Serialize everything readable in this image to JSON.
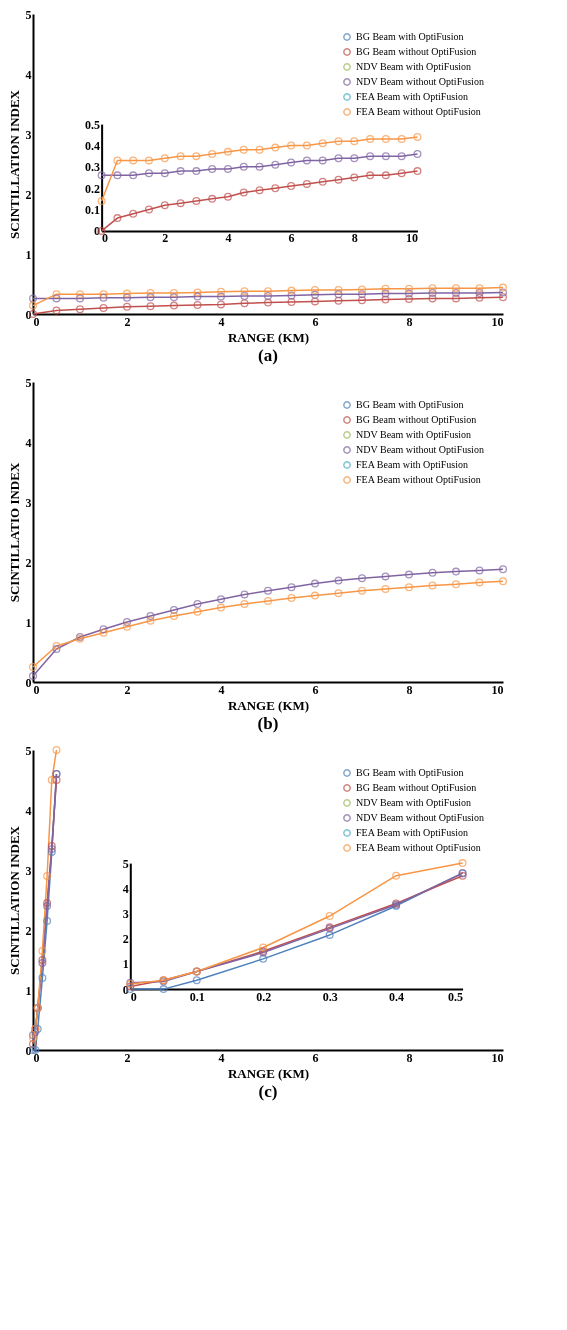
{
  "chart_data": [
    {
      "type": "line",
      "title": "(a)",
      "xlabel": "RANGE (KM)",
      "ylabel": "SCINTILLATION INDEX",
      "x": [
        0,
        0.5,
        1,
        1.5,
        2,
        2.5,
        3,
        3.5,
        4,
        4.5,
        5,
        5.5,
        6,
        6.5,
        7,
        7.5,
        8,
        8.5,
        9,
        9.5,
        10
      ],
      "xlim": [
        0,
        10
      ],
      "xticks": [
        0,
        2,
        4,
        6,
        8,
        10
      ],
      "ylim": [
        0,
        5
      ],
      "yticks": [
        0,
        1,
        2,
        3,
        4,
        5
      ],
      "legend": "top right",
      "marker": "circle",
      "series": [
        {
          "name": "BG Beam with OptiFusion",
          "color": "#4f81bd",
          "values": [
            null,
            null,
            null,
            null,
            null,
            null,
            null,
            null,
            null,
            null,
            null,
            null,
            null,
            null,
            null,
            null,
            null,
            null,
            null,
            null,
            null
          ]
        },
        {
          "name": "BG Beam without OptiFusion",
          "color": "#c0504d",
          "values": [
            0,
            0.06,
            0.08,
            0.1,
            0.12,
            0.13,
            0.14,
            0.15,
            0.16,
            0.18,
            0.19,
            0.2,
            0.21,
            0.22,
            0.23,
            0.24,
            0.25,
            0.26,
            0.26,
            0.27,
            0.28
          ]
        },
        {
          "name": "NDV Beam with OptiFusion",
          "color": "#9bbb59",
          "values": [
            null,
            null,
            null,
            null,
            null,
            null,
            null,
            null,
            null,
            null,
            null,
            null,
            null,
            null,
            null,
            null,
            null,
            null,
            null,
            null,
            null
          ]
        },
        {
          "name": "NDV Beam without OptiFusion",
          "color": "#8064a2",
          "values": [
            0.26,
            0.26,
            0.26,
            0.27,
            0.27,
            0.28,
            0.28,
            0.29,
            0.29,
            0.3,
            0.3,
            0.31,
            0.32,
            0.33,
            0.33,
            0.34,
            0.34,
            0.35,
            0.35,
            0.35,
            0.36
          ]
        },
        {
          "name": "FEA Beam with OptiFusion",
          "color": "#4bacc6",
          "values": [
            null,
            null,
            null,
            null,
            null,
            null,
            null,
            null,
            null,
            null,
            null,
            null,
            null,
            null,
            null,
            null,
            null,
            null,
            null,
            null,
            null
          ]
        },
        {
          "name": "FEA Beam without OptiFusion",
          "color": "#f79646",
          "values": [
            0.14,
            0.33,
            0.33,
            0.33,
            0.34,
            0.35,
            0.35,
            0.36,
            0.37,
            0.38,
            0.38,
            0.39,
            0.4,
            0.4,
            0.41,
            0.42,
            0.42,
            0.43,
            0.43,
            0.43,
            0.44
          ]
        }
      ]
    },
    {
      "type": "line",
      "x": [
        0,
        0.5,
        1,
        1.5,
        2,
        2.5,
        3,
        3.5,
        4,
        4.5,
        5,
        5.5,
        6,
        6.5,
        7,
        7.5,
        8,
        8.5,
        9,
        9.5,
        10
      ],
      "xlim": [
        0,
        10
      ],
      "xticks": [
        0,
        2,
        4,
        6,
        8,
        10
      ],
      "ylim": [
        0,
        0.5
      ],
      "yticks": [
        0,
        0.1,
        0.2,
        0.3,
        0.4,
        0.5
      ],
      "marker": "circle",
      "series": [
        {
          "color": "#c0504d",
          "values": [
            0,
            0.06,
            0.08,
            0.1,
            0.12,
            0.13,
            0.14,
            0.15,
            0.16,
            0.18,
            0.19,
            0.2,
            0.21,
            0.22,
            0.23,
            0.24,
            0.25,
            0.26,
            0.26,
            0.27,
            0.28
          ]
        },
        {
          "color": "#8064a2",
          "values": [
            0.26,
            0.26,
            0.26,
            0.27,
            0.27,
            0.28,
            0.28,
            0.29,
            0.29,
            0.3,
            0.3,
            0.31,
            0.32,
            0.33,
            0.33,
            0.34,
            0.34,
            0.35,
            0.35,
            0.35,
            0.36
          ]
        },
        {
          "color": "#f79646",
          "values": [
            0.14,
            0.33,
            0.33,
            0.33,
            0.34,
            0.35,
            0.35,
            0.36,
            0.37,
            0.38,
            0.38,
            0.39,
            0.4,
            0.4,
            0.41,
            0.42,
            0.42,
            0.43,
            0.43,
            0.43,
            0.44
          ]
        }
      ]
    },
    {
      "type": "line",
      "title": "(b)",
      "xlabel": "RANGE (KM)",
      "ylabel": "SCINTILLATIO INDEX",
      "x": [
        0,
        0.5,
        1,
        1.5,
        2,
        2.5,
        3,
        3.5,
        4,
        4.5,
        5,
        5.5,
        6,
        6.5,
        7,
        7.5,
        8,
        8.5,
        9,
        9.5,
        10
      ],
      "xlim": [
        0,
        10
      ],
      "xticks": [
        0,
        2,
        4,
        6,
        8,
        10
      ],
      "ylim": [
        0,
        5
      ],
      "yticks": [
        0,
        1,
        2,
        3,
        4,
        5
      ],
      "legend": "top right",
      "marker": "circle",
      "series": [
        {
          "name": "BG Beam with OptiFusion",
          "color": "#4f81bd",
          "values": [
            null,
            null,
            null,
            null,
            null,
            null,
            null,
            null,
            null,
            null,
            null,
            null,
            null,
            null,
            null,
            null,
            null,
            null,
            null,
            null,
            null
          ]
        },
        {
          "name": "BG Beam without OptiFusion",
          "color": "#c0504d",
          "values": [
            null,
            null,
            null,
            null,
            null,
            null,
            null,
            null,
            null,
            null,
            null,
            null,
            null,
            null,
            null,
            null,
            null,
            null,
            null,
            null,
            null
          ]
        },
        {
          "name": "NDV Beam with OptiFusion",
          "color": "#9bbb59",
          "values": [
            null,
            null,
            null,
            null,
            null,
            null,
            null,
            null,
            null,
            null,
            null,
            null,
            null,
            null,
            null,
            null,
            null,
            null,
            null,
            null,
            null
          ]
        },
        {
          "name": "NDV Beam without OptiFusion",
          "color": "#8064a2",
          "values": [
            0.1,
            0.55,
            0.75,
            0.88,
            1.0,
            1.1,
            1.2,
            1.3,
            1.38,
            1.46,
            1.52,
            1.58,
            1.64,
            1.69,
            1.73,
            1.76,
            1.79,
            1.82,
            1.84,
            1.86,
            1.88
          ]
        },
        {
          "name": "FEA Beam with OptiFusion",
          "color": "#4bacc6",
          "values": [
            null,
            null,
            null,
            null,
            null,
            null,
            null,
            null,
            null,
            null,
            null,
            null,
            null,
            null,
            null,
            null,
            null,
            null,
            null,
            null,
            null
          ]
        },
        {
          "name": "FEA Beam without OptiFusion",
          "color": "#f79646",
          "values": [
            0.25,
            0.6,
            0.72,
            0.82,
            0.92,
            1.02,
            1.1,
            1.17,
            1.24,
            1.3,
            1.35,
            1.4,
            1.44,
            1.48,
            1.52,
            1.55,
            1.58,
            1.61,
            1.63,
            1.66,
            1.68
          ]
        }
      ]
    },
    {
      "type": "line",
      "title": "(c)",
      "xlabel": "RANGE (KM)",
      "ylabel": "SCINTILLATION INDEX",
      "x": [
        0,
        0.05,
        0.1,
        0.2,
        0.3,
        0.4,
        0.5
      ],
      "xlim": [
        0,
        10
      ],
      "xticks": [
        0,
        2,
        4,
        6,
        8,
        10
      ],
      "ylim": [
        0,
        5
      ],
      "yticks": [
        0,
        1,
        2,
        3,
        4,
        5
      ],
      "legend": "top right",
      "marker": "circle",
      "series": [
        {
          "name": "BG Beam with OptiFusion",
          "color": "#4f81bd",
          "values": [
            0,
            0,
            0.35,
            1.2,
            2.15,
            3.3,
            4.6
          ]
        },
        {
          "name": "BG Beam without OptiFusion",
          "color": "#c0504d",
          "values": [
            0.1,
            0.35,
            0.7,
            1.5,
            2.45,
            3.4,
            4.5
          ]
        },
        {
          "name": "NDV Beam with OptiFusion",
          "color": "#9bbb59",
          "values": [
            null,
            null,
            null,
            null,
            null,
            null,
            null
          ]
        },
        {
          "name": "NDV Beam without OptiFusion",
          "color": "#8064a2",
          "values": [
            0.25,
            0.3,
            0.7,
            1.45,
            2.4,
            3.35,
            4.6
          ]
        },
        {
          "name": "FEA Beam with OptiFusion",
          "color": "#4bacc6",
          "values": [
            null,
            null,
            null,
            null,
            null,
            null,
            null
          ]
        },
        {
          "name": "FEA Beam without OptiFusion",
          "color": "#f79646",
          "values": [
            0.2,
            0.35,
            0.7,
            1.65,
            2.9,
            4.5,
            5.0
          ]
        }
      ]
    },
    {
      "type": "line",
      "x": [
        0,
        0.05,
        0.1,
        0.2,
        0.3,
        0.4,
        0.5
      ],
      "xlim": [
        0,
        0.5
      ],
      "xticks": [
        0,
        0.1,
        0.2,
        0.3,
        0.4,
        0.5
      ],
      "ylim": [
        0,
        5
      ],
      "yticks": [
        0,
        1,
        2,
        3,
        4,
        5
      ],
      "marker": "circle",
      "series": [
        {
          "color": "#4f81bd",
          "values": [
            0,
            0,
            0.35,
            1.2,
            2.15,
            3.3,
            4.6
          ]
        },
        {
          "color": "#c0504d",
          "values": [
            0.1,
            0.35,
            0.7,
            1.5,
            2.45,
            3.4,
            4.5
          ]
        },
        {
          "color": "#8064a2",
          "values": [
            0.25,
            0.3,
            0.7,
            1.45,
            2.4,
            3.35,
            4.6
          ]
        },
        {
          "color": "#f79646",
          "values": [
            0.2,
            0.35,
            0.7,
            1.65,
            2.9,
            4.5,
            5.0
          ]
        }
      ]
    }
  ]
}
